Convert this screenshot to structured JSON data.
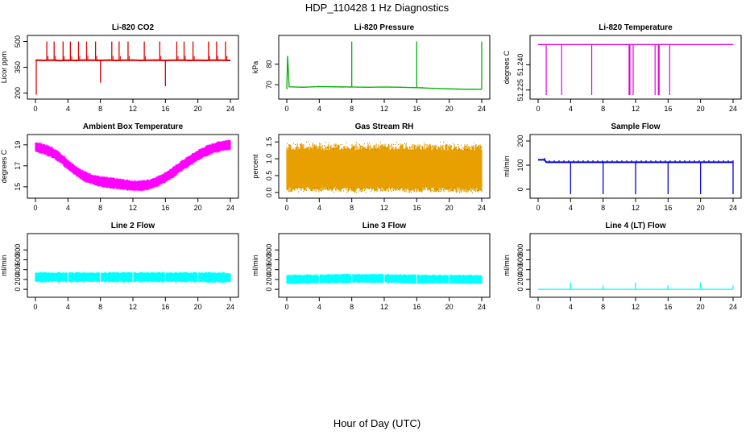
{
  "title": "HDP_110428  1 Hz Diagnostics",
  "xlabel": "Hour of Day (UTC)",
  "chart_data": [
    {
      "type": "line",
      "title": "Li-820 CO2",
      "ylabel": "Licor ppm",
      "color": "#e00000",
      "xlim": [
        0,
        24
      ],
      "ylim": [
        188,
        512
      ],
      "yticks": [
        200,
        350,
        500
      ],
      "xticks": [
        0,
        4,
        8,
        12,
        16,
        20,
        24
      ],
      "series": [
        {
          "x": [
            0,
            0.25,
            1,
            1.5,
            2,
            3,
            4,
            5,
            6,
            7,
            8,
            9,
            10,
            11,
            12,
            13,
            14,
            15,
            16,
            17,
            18,
            19,
            20,
            21,
            22,
            23,
            24
          ],
          "y": [
            390,
            392,
            390,
            391,
            392,
            389,
            391,
            390,
            392,
            391,
            390,
            392,
            390,
            391,
            392,
            390,
            391,
            392,
            390,
            391,
            392,
            390,
            391,
            390,
            392,
            391,
            390
          ]
        }
      ],
      "spikes_up": [
        1.4,
        2.3,
        3.4,
        4.3,
        5.3,
        6.3,
        7.4,
        9.4,
        10.3,
        11.4,
        13.4,
        15.3,
        17.4,
        18.3,
        19.4,
        21.3,
        22.3,
        23.4
      ],
      "spikes_up_peak": 500,
      "spikes_down": [
        0.1,
        8.0,
        16.0
      ],
      "spikes_down_value": [
        190,
        260,
        240
      ]
    },
    {
      "type": "line",
      "title": "Li-820 Pressure",
      "ylabel": "kPa",
      "color": "#00b000",
      "xlim": [
        0,
        24
      ],
      "ylim": [
        65,
        92
      ],
      "yticks": [
        70,
        80
      ],
      "xticks": [
        0,
        4,
        8,
        12,
        16,
        20,
        24
      ],
      "series": [
        {
          "x": [
            0,
            0.1,
            0.3,
            2,
            4,
            6,
            8,
            10,
            12,
            14,
            16,
            18,
            20,
            22,
            24
          ],
          "y": [
            68,
            84,
            69,
            68.8,
            69.1,
            69.0,
            68.9,
            68.8,
            68.9,
            68.8,
            68.6,
            68.3,
            68.0,
            67.8,
            67.8
          ]
        }
      ],
      "spikes_up": [
        8.0,
        16.0,
        24.0
      ],
      "spikes_up_peak": 91
    },
    {
      "type": "line",
      "title": "Li-820 Temperature",
      "ylabel": "degrees C",
      "color": "#e000e0",
      "xlim": [
        0,
        24
      ],
      "ylim": [
        51.222,
        51.255
      ],
      "yticks": [
        51.225,
        51.24
      ],
      "ytick_labels": [
        "51.225",
        "51.240"
      ],
      "xticks": [
        0,
        4,
        8,
        12,
        16,
        20,
        24
      ],
      "series": [
        {
          "x": [
            0,
            24
          ],
          "y": [
            51.252,
            51.252
          ]
        }
      ],
      "spikes_down": [
        1.0,
        2.9,
        6.6,
        11.2,
        11.3,
        11.7,
        14.4,
        14.8,
        14.9,
        16.2
      ]
    },
    {
      "type": "line",
      "title": "Ambient Box Temperature",
      "ylabel": "degrees C",
      "color": "#ff00ff",
      "xlim": [
        0,
        24
      ],
      "ylim": [
        14.3,
        19.6
      ],
      "yticks": [
        15,
        17,
        19
      ],
      "xticks": [
        0,
        4,
        8,
        12,
        16,
        20,
        24
      ],
      "series": [
        {
          "x": [
            0,
            1,
            2,
            3,
            4,
            5,
            6,
            7,
            8,
            9,
            10,
            11,
            12,
            13,
            14,
            15,
            16,
            17,
            18,
            19,
            20,
            21,
            22,
            23,
            24
          ],
          "y": [
            18.8,
            18.6,
            18.3,
            17.8,
            17.1,
            16.5,
            16.0,
            15.7,
            15.5,
            15.4,
            15.3,
            15.2,
            15.1,
            15.1,
            15.2,
            15.5,
            15.9,
            16.4,
            17.0,
            17.5,
            18.0,
            18.4,
            18.7,
            18.9,
            19.0
          ]
        }
      ]
    },
    {
      "type": "line",
      "title": "Gas Stream RH",
      "ylabel": "percent",
      "color": "#e8a000",
      "xlim": [
        0,
        24
      ],
      "ylim": [
        -0.05,
        1.6
      ],
      "yticks": [
        0.0,
        0.5,
        1.0,
        1.5
      ],
      "ytick_labels": [
        "0.0",
        "0.5",
        "1.0",
        "1.5"
      ],
      "xticks": [
        0,
        4,
        8,
        12,
        16,
        20,
        24
      ],
      "series": [
        {
          "x": [
            0,
            2,
            4,
            6,
            8,
            10,
            12,
            14,
            16,
            18,
            20,
            22,
            24
          ],
          "y": [
            0.7,
            0.72,
            0.7,
            0.71,
            0.7,
            0.7,
            0.71,
            0.7,
            0.7,
            0.7,
            0.7,
            0.69,
            0.7
          ]
        }
      ]
    },
    {
      "type": "line",
      "title": "Sample Flow",
      "ylabel": "ml/min",
      "color": "#0000e0",
      "xlim": [
        0,
        24
      ],
      "ylim": [
        -20,
        210
      ],
      "yticks": [
        0,
        100,
        200
      ],
      "xticks": [
        0,
        4,
        8,
        12,
        16,
        20,
        24
      ],
      "series": [
        {
          "x": [
            0,
            0.8,
            1,
            4,
            8,
            12,
            16,
            20,
            24
          ],
          "y": [
            122,
            122,
            112,
            112,
            112,
            112,
            112,
            112,
            112
          ]
        }
      ],
      "spikes_down": [
        4.0,
        8.0,
        12.0,
        16.0,
        20.0,
        24.0
      ]
    },
    {
      "type": "line",
      "title": "Line 2 Flow",
      "ylabel": "ml/min",
      "color": "#00ffff",
      "xlim": [
        0,
        24
      ],
      "ylim": [
        -80,
        1050
      ],
      "yticks": [
        0,
        200,
        400,
        600,
        800
      ],
      "xticks": [
        0,
        4,
        8,
        12,
        16,
        20,
        24
      ],
      "series": [
        {
          "x": [
            0,
            4,
            8,
            12,
            16,
            20,
            24
          ],
          "y": [
            245,
            245,
            245,
            245,
            245,
            245,
            235
          ]
        }
      ]
    },
    {
      "type": "line",
      "title": "Line 3 Flow",
      "ylabel": "ml/min",
      "color": "#00ffff",
      "xlim": [
        0,
        24
      ],
      "ylim": [
        -80,
        1050
      ],
      "yticks": [
        0,
        200,
        400,
        600,
        800
      ],
      "xticks": [
        0,
        4,
        8,
        12,
        16,
        20,
        24
      ],
      "series": [
        {
          "x": [
            0,
            4,
            8,
            12,
            16,
            20,
            24
          ],
          "y": [
            200,
            210,
            220,
            220,
            205,
            205,
            200
          ]
        }
      ]
    },
    {
      "type": "line",
      "title": "Line 4 (LT) Flow",
      "ylabel": "ml/min",
      "color": "#00ffff",
      "xlim": [
        0,
        24
      ],
      "ylim": [
        -80,
        1050
      ],
      "yticks": [
        0,
        200,
        400,
        600,
        800
      ],
      "xticks": [
        0,
        4,
        8,
        12,
        16,
        20,
        24
      ],
      "series": [
        {
          "x": [
            0,
            24
          ],
          "y": [
            0,
            0
          ]
        }
      ],
      "spikes_up": [
        4.0,
        8.0,
        12.0,
        16.0,
        20.0,
        24.0
      ],
      "spikes_up_value": [
        140,
        80,
        140,
        80,
        140,
        80
      ]
    }
  ]
}
